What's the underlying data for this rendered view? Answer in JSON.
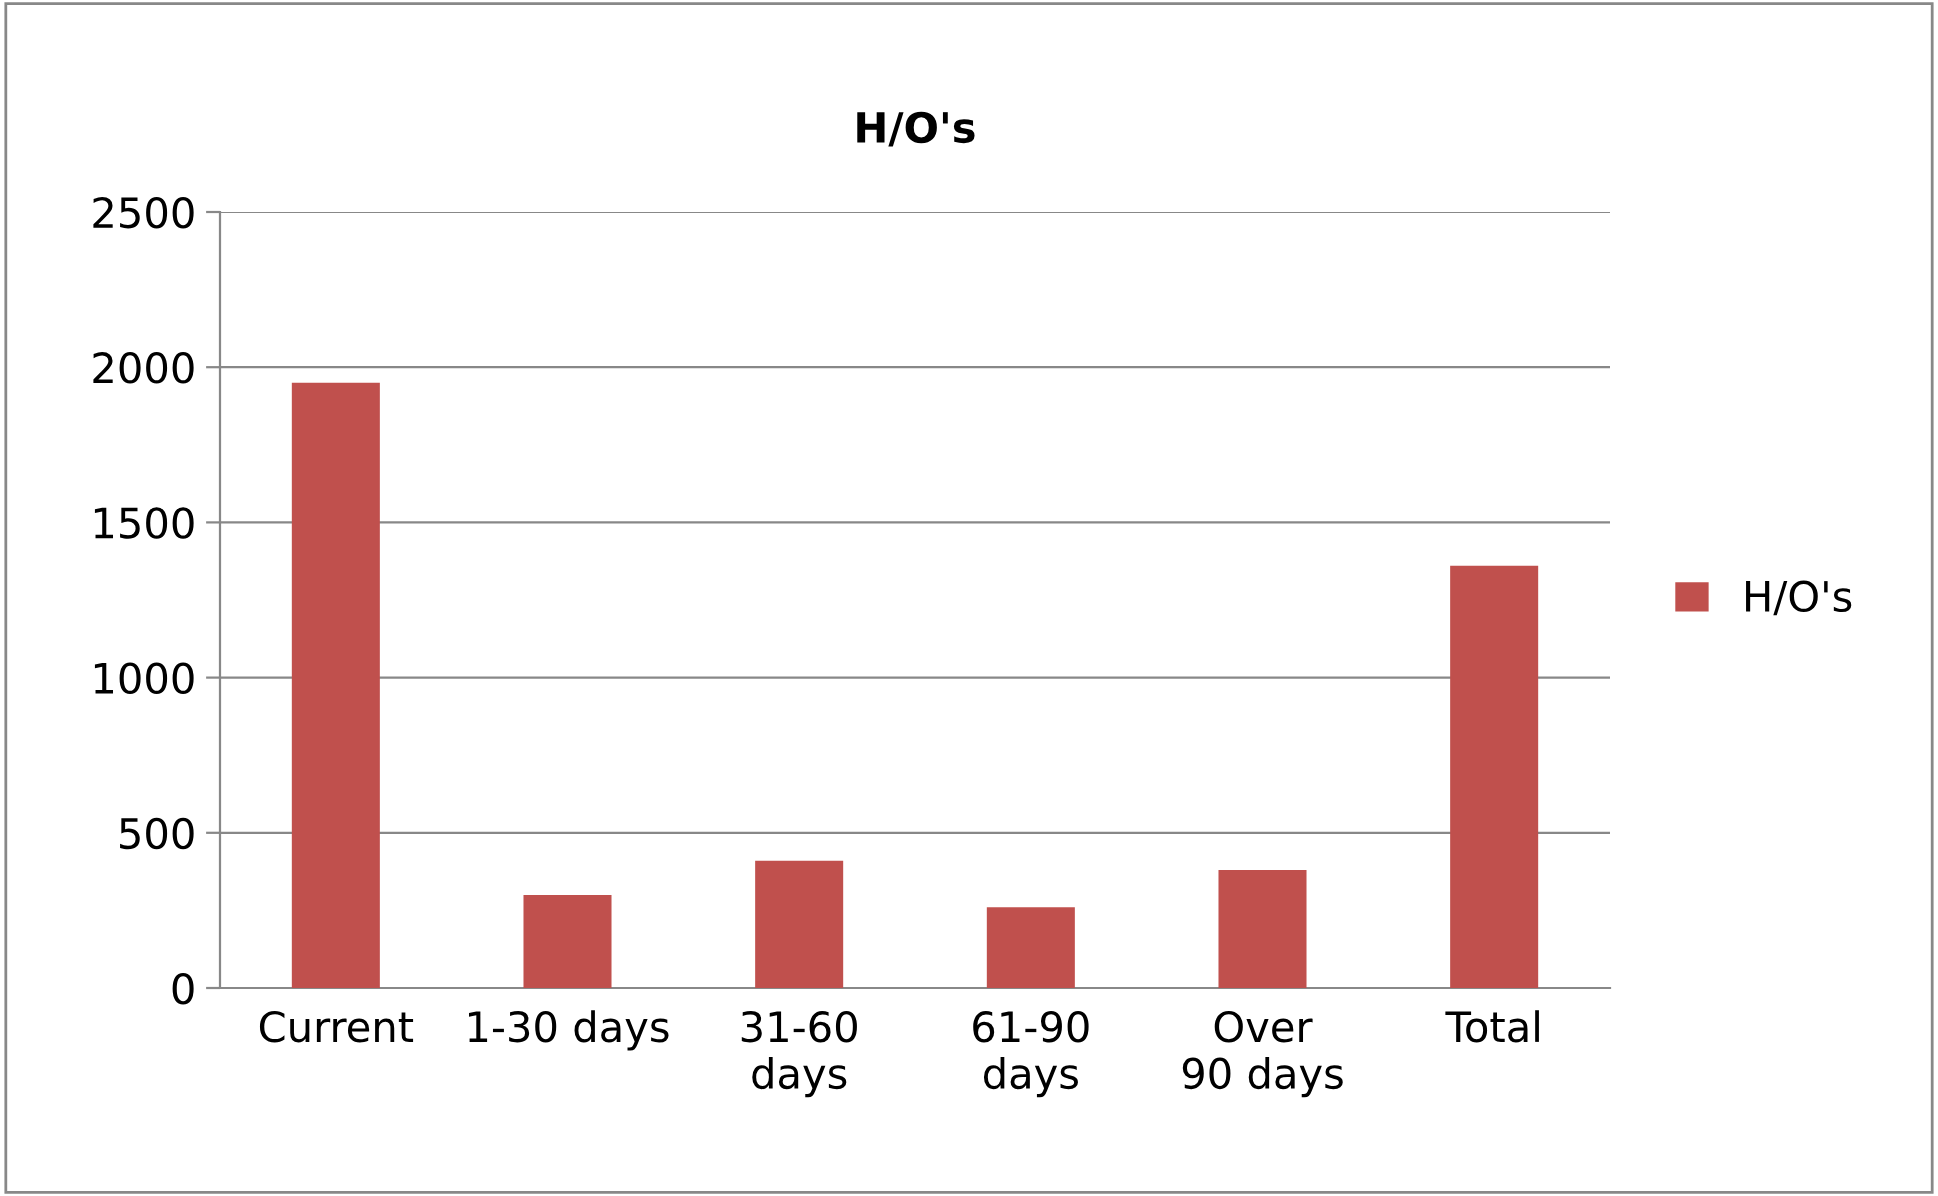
{
  "chart_data": {
    "type": "bar",
    "title": "H/O's",
    "categories": [
      "Current",
      "1-30 days",
      "31-60 days",
      "61-90 days",
      "Over 90 days",
      "Total"
    ],
    "series": [
      {
        "name": "H/O's",
        "color": "#c0504d",
        "values": [
          1950,
          300,
          410,
          260,
          380,
          1360
        ]
      }
    ],
    "ylim": [
      0,
      2500
    ],
    "yticks": [
      0,
      500,
      1000,
      1500,
      2000,
      2500
    ],
    "grid": "y",
    "legend": "right"
  }
}
